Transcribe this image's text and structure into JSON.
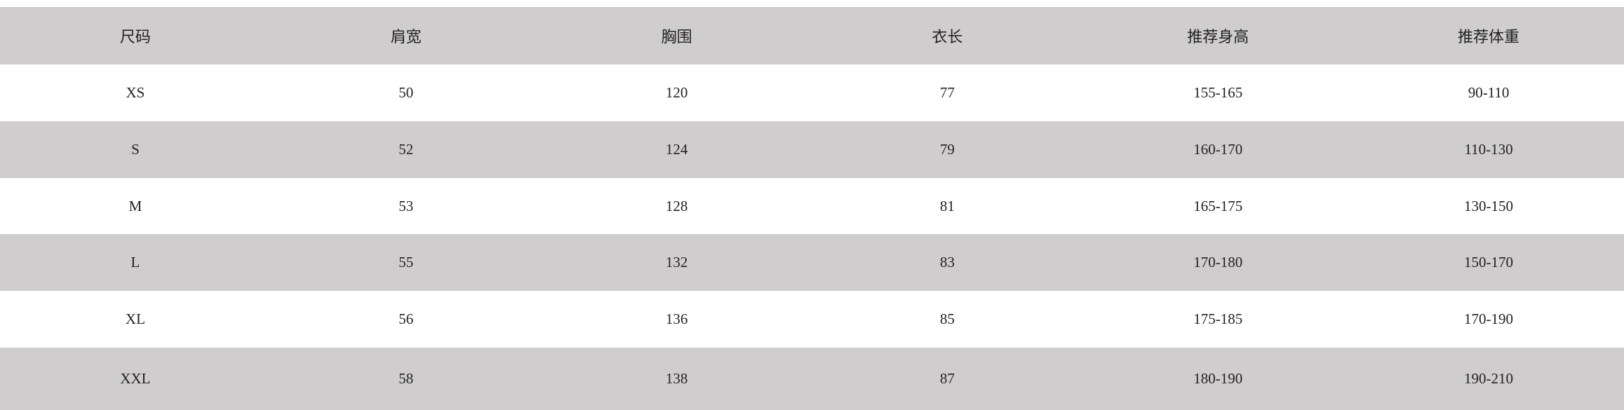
{
  "table": {
    "header": [
      "尺码",
      "肩宽",
      "胸围",
      "衣长",
      "推荐身高",
      "推荐体重"
    ],
    "rows": [
      [
        "XS",
        "50",
        "120",
        "77",
        "155-165",
        "90-110"
      ],
      [
        "S",
        "52",
        "124",
        "79",
        "160-170",
        "110-130"
      ],
      [
        "M",
        "53",
        "128",
        "81",
        "165-175",
        "130-150"
      ],
      [
        "L",
        "55",
        "132",
        "83",
        "170-180",
        "150-170"
      ],
      [
        "XL",
        "56",
        "136",
        "85",
        "175-185",
        "170-190"
      ],
      [
        "XXL",
        "58",
        "138",
        "87",
        "180-190",
        "190-210"
      ]
    ]
  }
}
